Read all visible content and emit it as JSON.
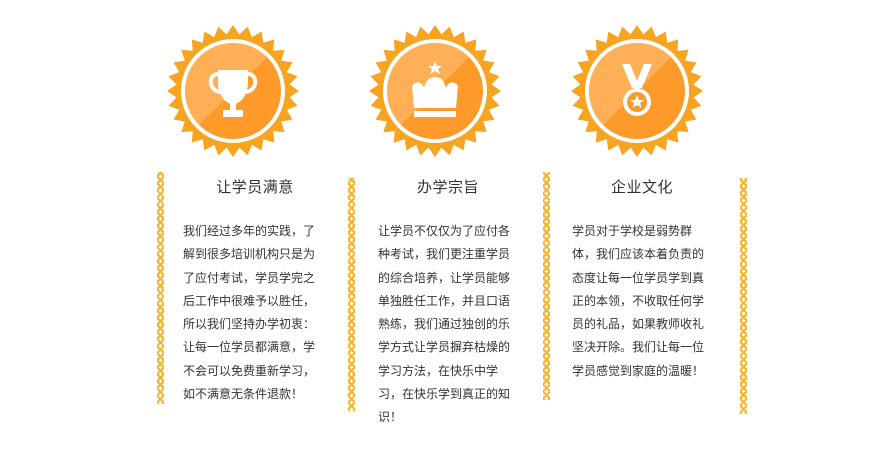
{
  "colors": {
    "badge_outer": "#f7a420",
    "badge_inner": "#fe9a2a",
    "badge_ring": "#ffffff",
    "badge_shine": "#ffc27a",
    "divider": "#f5b533",
    "text": "#333333"
  },
  "columns": [
    {
      "icon": "trophy-icon",
      "title": "让学员满意",
      "body": "我们经过多年的实践，了\n解到很多培训机构只是为\n了应付考试，学员学完之\n后工作中很难予以胜任，\n所以我们坚持办学初衷：\n让每一位学员都满意，学\n不会可以免费重新学习，\n如不满意无条件退款！"
    },
    {
      "icon": "crown-icon",
      "title": "办学宗旨",
      "body": "让学员不仅仅为了应付各\n种考试，我们更注重学员\n的综合培养，让学员能够\n单独胜任工作，并且口语\n熟练，我们通过独创的乐\n学方式让学员摒弃枯燥的\n学习方法，在快乐中学\n习，在快乐学到真正的知\n识！"
    },
    {
      "icon": "medal-icon",
      "title": "企业文化",
      "body": "学员对于学校是弱势群\n体，我们应该本着负责的\n态度让每一位学员学到真\n正的本领，不收取任何学\n员的礼品，如果教师收礼\n坚决开除。我们让每一位\n学员感觉到家庭的温暖！"
    }
  ]
}
